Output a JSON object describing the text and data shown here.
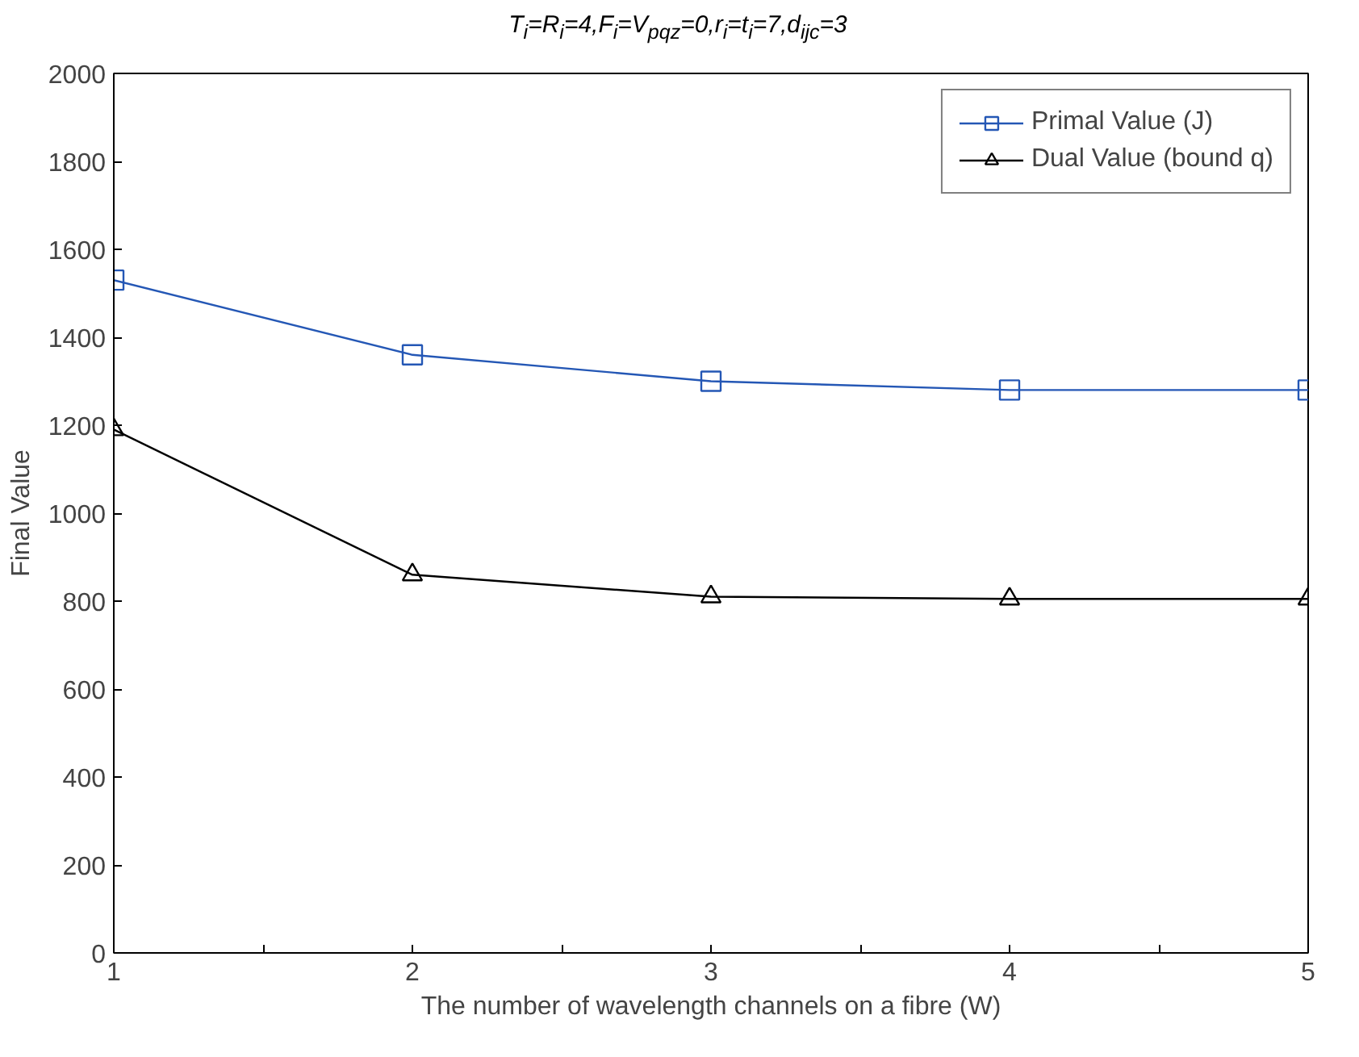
{
  "chart_data": {
    "type": "line",
    "title": "T$_{i}$=R$_{i}$=4,F$_{i}$=V$_{pqz}$=0,r$_{i}$=t$_{i}$=7,d$_{ijc}$=3",
    "xlabel": "The number of wavelength channels on a fibre (W)",
    "ylabel": "Final Value",
    "x": [
      1,
      2,
      3,
      4,
      5
    ],
    "series": [
      {
        "name": "Primal Value (J)",
        "color": "#2457b5",
        "values": [
          1530,
          1360,
          1300,
          1280,
          1280
        ],
        "marker": "square"
      },
      {
        "name": "Dual Value (bound q)",
        "color": "#000000",
        "values": [
          1190,
          860,
          810,
          805,
          805
        ],
        "marker": "triangle"
      }
    ],
    "xlim": [
      1,
      5
    ],
    "xticks": [
      1,
      {
        "value": 1.5,
        "label": null
      },
      2,
      {
        "value": 2.5,
        "label": null
      },
      3,
      {
        "value": 3.5,
        "label": null
      },
      4,
      {
        "value": 4.5,
        "label": null
      },
      5
    ],
    "ylim": [
      0,
      2000
    ],
    "yticks": [
      0,
      200,
      400,
      600,
      800,
      1000,
      1200,
      1400,
      1600,
      1800,
      2000
    ],
    "grid": false,
    "legend": "top right",
    "line_style": "solid"
  }
}
